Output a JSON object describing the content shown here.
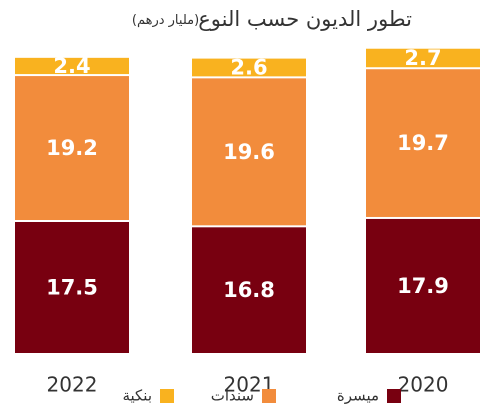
{
  "chart_data": {
    "type": "stacked_bar",
    "title": "تطور الديون حسب النوع",
    "subtitle": "(مليار درهم)",
    "categories": [
      "2022",
      "2021",
      "2020"
    ],
    "series": [
      {
        "name": "ميسرة",
        "color": "#780010",
        "values": [
          17.5,
          16.8,
          17.9
        ]
      },
      {
        "name": "سندات",
        "color": "#f28c3c",
        "values": [
          19.2,
          19.6,
          19.7
        ]
      },
      {
        "name": "بنكية",
        "color": "#f9b21f",
        "values": [
          2.4,
          2.6,
          2.7
        ]
      }
    ]
  }
}
